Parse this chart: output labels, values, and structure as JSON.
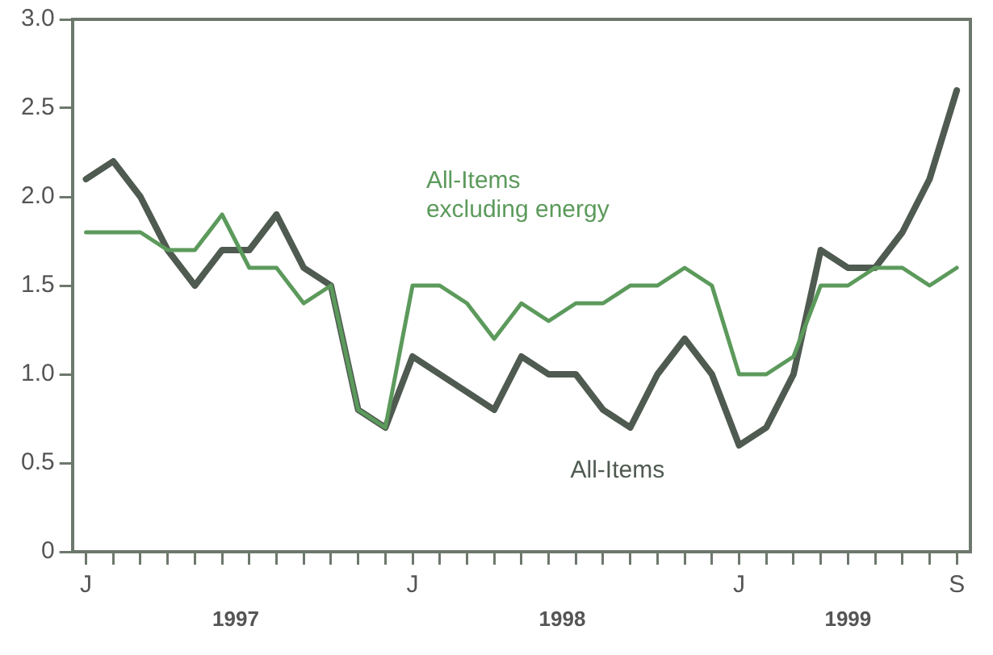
{
  "chart_data": {
    "type": "line",
    "categories": [
      "J",
      null,
      null,
      null,
      null,
      null,
      null,
      null,
      null,
      null,
      null,
      null,
      "J",
      null,
      null,
      null,
      null,
      null,
      null,
      null,
      null,
      null,
      null,
      null,
      "J",
      null,
      null,
      null,
      null,
      null,
      null,
      null,
      "S"
    ],
    "series": [
      {
        "name": "All-Items",
        "color": "#4f5a50",
        "values": [
          2.1,
          2.2,
          2.0,
          1.7,
          1.5,
          1.7,
          1.7,
          1.9,
          1.6,
          1.5,
          0.8,
          0.7,
          1.1,
          1.0,
          0.9,
          0.8,
          1.1,
          1.0,
          1.0,
          0.8,
          0.7,
          1.0,
          1.2,
          1.0,
          0.6,
          0.7,
          1.0,
          1.7,
          1.6,
          1.6,
          1.8,
          2.1,
          2.6
        ]
      },
      {
        "name": "All-Items\nexcluding energy",
        "color": "#5c9a5c",
        "values": [
          1.8,
          1.8,
          1.8,
          1.7,
          1.7,
          1.9,
          1.6,
          1.6,
          1.4,
          1.5,
          0.8,
          0.7,
          1.5,
          1.5,
          1.4,
          1.2,
          1.4,
          1.3,
          1.4,
          1.4,
          1.5,
          1.5,
          1.6,
          1.5,
          1.0,
          1.0,
          1.1,
          1.5,
          1.5,
          1.6,
          1.6,
          1.5,
          1.6
        ]
      }
    ],
    "ylim": [
      0,
      3.0
    ],
    "yticks": [
      0,
      0.5,
      {
        "value": 1,
        "label": "1.0"
      },
      1.5,
      {
        "value": 2,
        "label": "2.0"
      },
      2.5,
      {
        "value": 3,
        "label": "3.0"
      }
    ],
    "annotations": [
      "1997",
      "1998",
      "1999"
    ],
    "grid": false,
    "legend": false,
    "marker": "none",
    "line_style": "solid"
  }
}
